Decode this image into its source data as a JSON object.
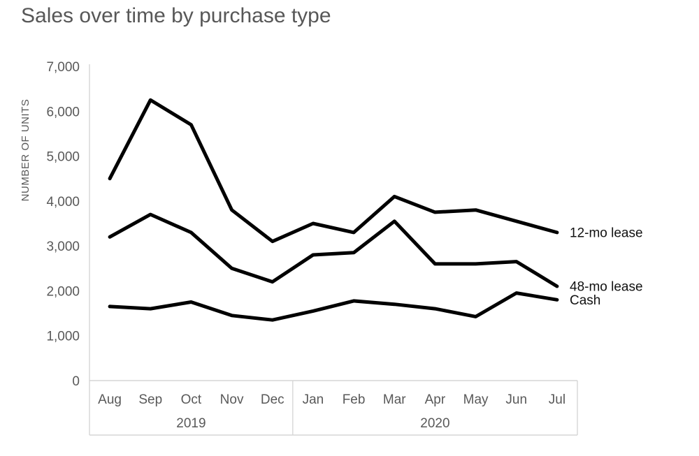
{
  "title": "Sales over time by purchase type",
  "chart_data": {
    "type": "line",
    "title": "Sales over time by purchase type",
    "xlabel": "",
    "ylabel": "NUMBER OF UNITS",
    "ylim": [
      0,
      7000
    ],
    "ytick_step": 1000,
    "grid": false,
    "legend_position": "right-of-line-ends",
    "categories": [
      "Aug",
      "Sep",
      "Oct",
      "Nov",
      "Dec",
      "Jan",
      "Feb",
      "Mar",
      "Apr",
      "May",
      "Jun",
      "Jul"
    ],
    "year_groups": [
      {
        "label": "2019",
        "start": 0,
        "end": 4
      },
      {
        "label": "2020",
        "start": 5,
        "end": 11
      }
    ],
    "series": [
      {
        "name": "12-mo lease",
        "values": [
          4500,
          6250,
          5700,
          3800,
          3100,
          3500,
          3300,
          4100,
          3750,
          3800,
          3550,
          3300
        ]
      },
      {
        "name": "48-mo lease",
        "values": [
          3200,
          3700,
          3300,
          2500,
          2200,
          2800,
          2850,
          3550,
          2600,
          2600,
          2650,
          2100
        ]
      },
      {
        "name": "Cash",
        "values": [
          1650,
          1600,
          1750,
          1450,
          1350,
          1550,
          1775,
          1700,
          1600,
          1425,
          1950,
          1800
        ]
      }
    ],
    "colors": {
      "line": "#000000",
      "axis": "#d6d6d6",
      "tick_text": "#595959",
      "series_label_text": "#111111"
    }
  }
}
